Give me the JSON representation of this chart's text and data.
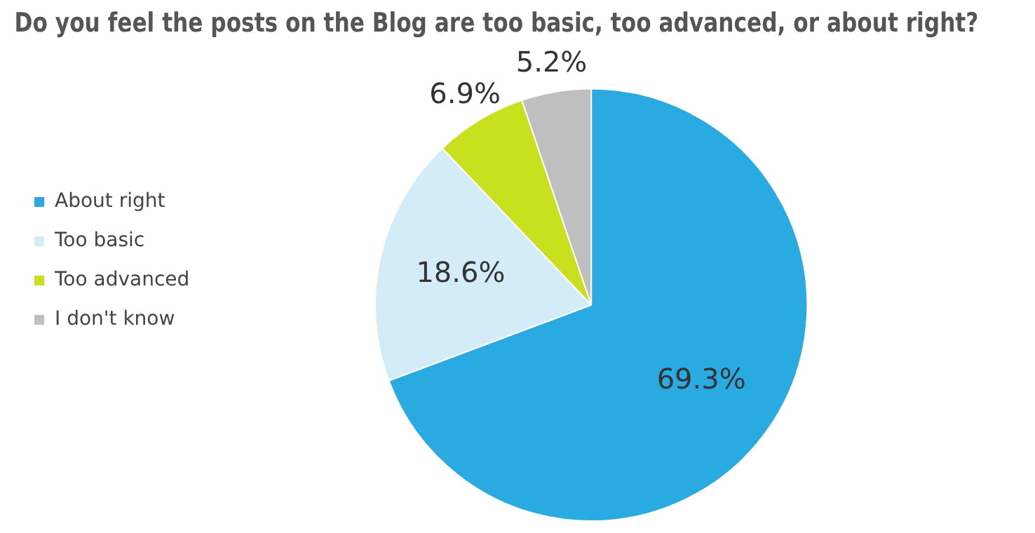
{
  "chart_data": {
    "type": "pie",
    "title": "Do you feel the posts on the Blog are too basic, too advanced, or about right?",
    "categories": [
      "About right",
      "Too basic",
      "Too advanced",
      "I don't know"
    ],
    "values": [
      69.3,
      18.6,
      6.9,
      5.2
    ],
    "value_labels": [
      "69.3%",
      "18.6%",
      "6.9%",
      "5.2%"
    ],
    "colors": [
      "#29abe2",
      "#d4ecf7",
      "#c8e01e",
      "#bfbfbf"
    ],
    "legend": "left"
  }
}
